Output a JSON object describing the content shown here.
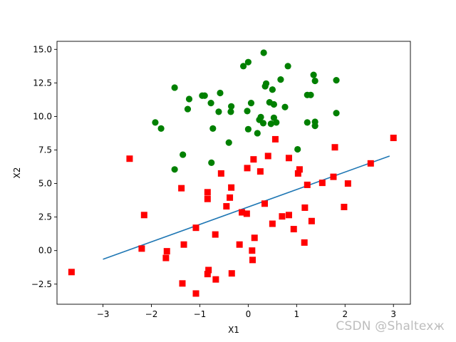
{
  "chart_data": {
    "type": "scatter",
    "title": "",
    "xlabel": "X1",
    "ylabel": "X2",
    "xlim": [
      -3.95,
      3.35
    ],
    "ylim": [
      -4.0,
      15.6
    ],
    "xticks": [
      -3,
      -2,
      -1,
      0,
      1,
      2,
      3
    ],
    "yticks": [
      -2.5,
      0.0,
      2.5,
      5.0,
      7.5,
      10.0,
      12.5,
      15.0
    ],
    "xtick_labels": [
      "−3",
      "−2",
      "−1",
      "0",
      "1",
      "2",
      "3"
    ],
    "ytick_labels": [
      "−2.5",
      "0.0",
      "2.5",
      "5.0",
      "7.5",
      "10.0",
      "12.5",
      "15.0"
    ],
    "grid": false,
    "colors": {
      "class1": "#008000",
      "class0": "#ff0000",
      "boundary": "#1f77b4"
    },
    "series": [
      {
        "marker": "circle",
        "color": "#008000",
        "points": [
          [
            -1.52,
            12.15
          ],
          [
            -1.22,
            11.3
          ],
          [
            -1.25,
            10.55
          ],
          [
            -0.95,
            11.55
          ],
          [
            -0.9,
            11.55
          ],
          [
            -0.77,
            11.0
          ],
          [
            -0.58,
            11.75
          ],
          [
            -0.61,
            10.35
          ],
          [
            -0.35,
            10.75
          ],
          [
            -0.36,
            10.35
          ],
          [
            -0.1,
            13.75
          ],
          [
            0.0,
            14.05
          ],
          [
            0.32,
            14.75
          ],
          [
            0.82,
            13.75
          ],
          [
            1.35,
            13.1
          ],
          [
            1.38,
            12.65
          ],
          [
            1.82,
            12.7
          ],
          [
            0.67,
            12.75
          ],
          [
            0.37,
            12.45
          ],
          [
            0.35,
            12.25
          ],
          [
            0.5,
            12.0
          ],
          [
            0.06,
            11.0
          ],
          [
            1.22,
            11.6
          ],
          [
            1.29,
            11.6
          ],
          [
            0.44,
            11.05
          ],
          [
            0.53,
            10.9
          ],
          [
            0.76,
            10.7
          ],
          [
            -0.02,
            10.4
          ],
          [
            0.26,
            9.95
          ],
          [
            0.53,
            9.9
          ],
          [
            0.58,
            9.55
          ],
          [
            0.47,
            9.45
          ],
          [
            0.23,
            9.75
          ],
          [
            0.31,
            9.5
          ],
          [
            0.0,
            9.05
          ],
          [
            0.19,
            8.75
          ],
          [
            1.22,
            9.55
          ],
          [
            1.38,
            9.6
          ],
          [
            1.38,
            9.3
          ],
          [
            1.82,
            10.25
          ],
          [
            -1.92,
            9.55
          ],
          [
            -1.8,
            9.1
          ],
          [
            -0.73,
            9.1
          ],
          [
            -0.4,
            8.05
          ],
          [
            -1.35,
            7.15
          ],
          [
            -0.76,
            6.55
          ],
          [
            -1.52,
            6.05
          ],
          [
            1.02,
            7.55
          ]
        ]
      },
      {
        "marker": "square",
        "color": "#ff0000",
        "points": [
          [
            -3.65,
            -1.6
          ],
          [
            -2.45,
            6.85
          ],
          [
            -2.15,
            2.65
          ],
          [
            -2.2,
            0.15
          ],
          [
            -1.68,
            -0.05
          ],
          [
            -1.7,
            -0.55
          ],
          [
            -1.38,
            4.65
          ],
          [
            -1.33,
            0.45
          ],
          [
            -1.36,
            -2.45
          ],
          [
            -1.08,
            1.7
          ],
          [
            -1.08,
            -3.2
          ],
          [
            -0.84,
            4.35
          ],
          [
            -0.84,
            3.85
          ],
          [
            -0.82,
            -1.45
          ],
          [
            -0.84,
            -1.75
          ],
          [
            -0.67,
            -2.15
          ],
          [
            -0.68,
            1.2
          ],
          [
            -0.56,
            5.75
          ],
          [
            -0.45,
            3.3
          ],
          [
            -0.38,
            3.95
          ],
          [
            -0.35,
            4.7
          ],
          [
            -0.34,
            -1.7
          ],
          [
            -0.18,
            0.45
          ],
          [
            -0.13,
            2.85
          ],
          [
            -0.03,
            2.75
          ],
          [
            -0.02,
            6.15
          ],
          [
            0.08,
            0.0
          ],
          [
            0.09,
            -0.7
          ],
          [
            0.11,
            6.8
          ],
          [
            0.13,
            0.95
          ],
          [
            0.25,
            5.9
          ],
          [
            0.34,
            3.5
          ],
          [
            0.41,
            7.05
          ],
          [
            0.5,
            2.0
          ],
          [
            0.56,
            8.3
          ],
          [
            0.7,
            2.55
          ],
          [
            0.84,
            2.65
          ],
          [
            0.84,
            6.9
          ],
          [
            0.94,
            1.6
          ],
          [
            1.03,
            5.75
          ],
          [
            1.06,
            6.05
          ],
          [
            1.16,
            0.6
          ],
          [
            1.17,
            3.2
          ],
          [
            1.22,
            4.9
          ],
          [
            1.31,
            2.2
          ],
          [
            1.53,
            5.05
          ],
          [
            1.76,
            5.5
          ],
          [
            1.79,
            7.7
          ],
          [
            1.98,
            3.25
          ],
          [
            2.06,
            5.0
          ],
          [
            2.53,
            6.5
          ],
          [
            3.0,
            8.4
          ]
        ]
      }
    ],
    "boundary_line": {
      "x": [
        -3.0,
        2.92
      ],
      "y": [
        -0.65,
        7.05
      ]
    }
  },
  "watermark": "CSDN @Shaltexж"
}
